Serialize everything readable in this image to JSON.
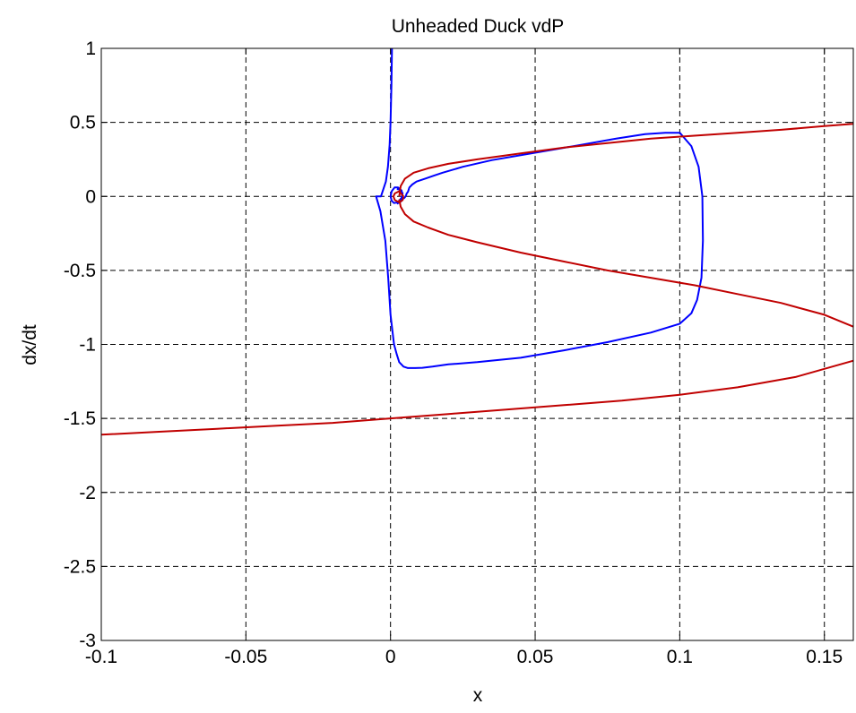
{
  "chart_data": {
    "type": "line",
    "title": "Unheaded Duck vdP",
    "xlabel": "x",
    "ylabel": "dx/dt",
    "xlim": [
      -0.1,
      0.16
    ],
    "ylim": [
      -3,
      1
    ],
    "xticks": [
      -0.1,
      -0.05,
      0,
      0.05,
      0.1,
      0.15
    ],
    "xtick_labels": [
      "-0.1",
      "-0.05",
      "0",
      "0.05",
      "0.1",
      "0.15"
    ],
    "yticks": [
      -3,
      -2.5,
      -2,
      -1.5,
      -1,
      -0.5,
      0,
      0.5,
      1
    ],
    "ytick_labels": [
      "-3",
      "-2.5",
      "-2",
      "-1.5",
      "-1",
      "-0.5",
      "0",
      "0.5",
      "1"
    ],
    "grid": true,
    "series": [
      {
        "color": "#0000ff",
        "x": [
          0.0005,
          0.0003,
          0.0,
          -0.0003,
          -0.0009,
          -0.0016,
          -0.0033,
          -0.005,
          -0.0035,
          -0.0018,
          -0.0008,
          0.0,
          0.0012,
          0.0022,
          0.003,
          0.0045,
          0.006,
          0.0085,
          0.011,
          0.0145,
          0.02,
          0.03,
          0.045,
          0.06,
          0.075,
          0.09,
          0.1,
          0.104,
          0.106,
          0.1075,
          0.108,
          0.1078,
          0.1065,
          0.104,
          0.1,
          0.095,
          0.088,
          0.078,
          0.065,
          0.05,
          0.035,
          0.025,
          0.018,
          0.015,
          0.012,
          0.009,
          0.0075,
          0.0065,
          0.006,
          0.0056,
          0.0052,
          0.0048,
          0.0045
        ],
        "y": [
          1.0,
          0.75,
          0.5,
          0.35,
          0.2,
          0.1,
          0.0,
          0.0,
          -0.1,
          -0.3,
          -0.55,
          -0.8,
          -1.0,
          -1.07,
          -1.12,
          -1.15,
          -1.16,
          -1.16,
          -1.158,
          -1.15,
          -1.135,
          -1.12,
          -1.09,
          -1.04,
          -0.985,
          -0.92,
          -0.86,
          -0.79,
          -0.7,
          -0.55,
          -0.3,
          0.0,
          0.2,
          0.34,
          0.43,
          0.43,
          0.42,
          0.39,
          0.345,
          0.295,
          0.245,
          0.2,
          0.16,
          0.14,
          0.12,
          0.1,
          0.08,
          0.06,
          0.03,
          0.02,
          0.0,
          -0.01,
          -0.015
        ]
      },
      {
        "color": "#0000ff",
        "x": [
          0.0022,
          0.0035,
          0.0042,
          0.0038,
          0.0025,
          0.0012,
          0.0004,
          0.0,
          0.0004,
          0.0014,
          0.0026,
          0.0038,
          0.0042,
          0.0036,
          0.0022
        ],
        "y": [
          0.05,
          0.045,
          0.02,
          -0.01,
          -0.04,
          -0.045,
          -0.03,
          0.0,
          0.035,
          0.06,
          0.06,
          0.04,
          0.0,
          -0.035,
          -0.05
        ]
      },
      {
        "color": "#c00000",
        "x": [
          0.003,
          0.0035,
          0.005,
          0.008,
          0.013,
          0.02,
          0.03,
          0.045,
          0.06,
          0.075,
          0.09,
          0.105,
          0.12,
          0.135,
          0.15,
          0.16
        ],
        "y": [
          0.0,
          0.07,
          0.12,
          0.16,
          0.19,
          0.22,
          0.25,
          0.29,
          0.33,
          0.36,
          0.39,
          0.41,
          0.43,
          0.45,
          0.475,
          0.49
        ]
      },
      {
        "color": "#c00000",
        "x": [
          0.003,
          0.0035,
          0.005,
          0.008,
          0.013,
          0.02,
          0.03,
          0.045,
          0.06,
          0.075,
          0.09,
          0.105,
          0.12,
          0.135,
          0.15,
          0.16
        ],
        "y": [
          -0.02,
          -0.07,
          -0.12,
          -0.17,
          -0.21,
          -0.26,
          -0.31,
          -0.38,
          -0.44,
          -0.5,
          -0.55,
          -0.6,
          -0.66,
          -0.72,
          -0.8,
          -0.88
        ]
      },
      {
        "color": "#c00000",
        "x": [
          0.0045,
          0.003,
          0.0015,
          0.001,
          0.0015,
          0.003,
          0.0042,
          0.0045
        ],
        "y": [
          0.0,
          0.035,
          0.02,
          0.0,
          -0.025,
          -0.04,
          -0.025,
          0.0
        ]
      },
      {
        "color": "#c00000",
        "x": [
          -0.1,
          -0.08,
          -0.06,
          -0.04,
          -0.02,
          0.0,
          0.02,
          0.04,
          0.06,
          0.08,
          0.1,
          0.12,
          0.14,
          0.16
        ],
        "y": [
          -1.61,
          -1.59,
          -1.57,
          -1.55,
          -1.53,
          -1.5,
          -1.47,
          -1.44,
          -1.41,
          -1.38,
          -1.34,
          -1.29,
          -1.22,
          -1.11
        ]
      }
    ]
  }
}
